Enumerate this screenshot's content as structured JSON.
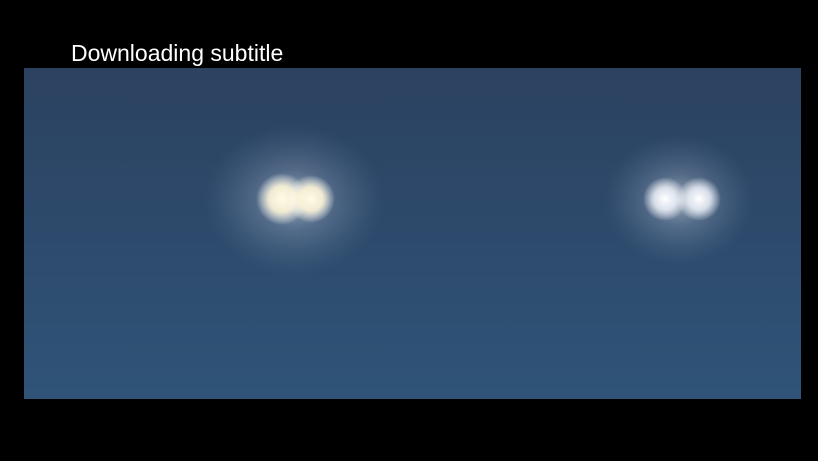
{
  "status_text": "Downloading subtitle"
}
